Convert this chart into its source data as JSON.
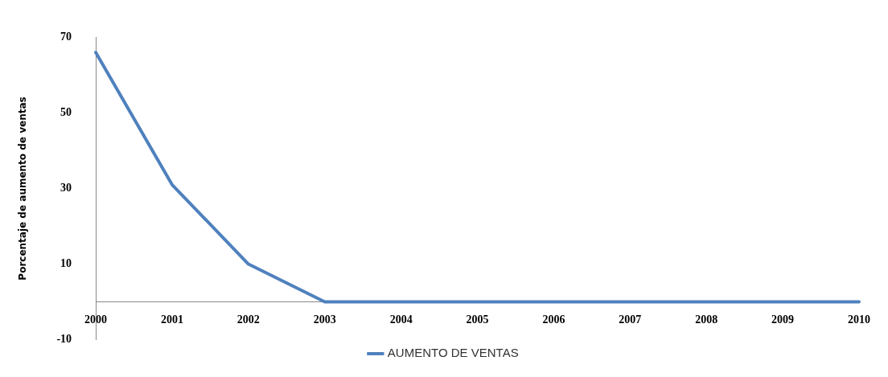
{
  "chart_data": {
    "type": "line",
    "ylabel": "Porcentaje de aumento de ventas",
    "categories": [
      "2000",
      "2001",
      "2002",
      "2003",
      "2004",
      "2005",
      "2006",
      "2007",
      "2008",
      "2009",
      "2010"
    ],
    "series": [
      {
        "name": "AUMENTO DE VENTAS",
        "color": "#4f81bd",
        "values": [
          66,
          31,
          10,
          0,
          0,
          0,
          0,
          0,
          0,
          0,
          0
        ]
      }
    ],
    "ylim": [
      -10,
      70
    ],
    "yticks": [
      -10,
      10,
      30,
      50,
      70
    ],
    "grid": false,
    "legend": "bottom",
    "marker": "none",
    "line_style": "solid"
  }
}
